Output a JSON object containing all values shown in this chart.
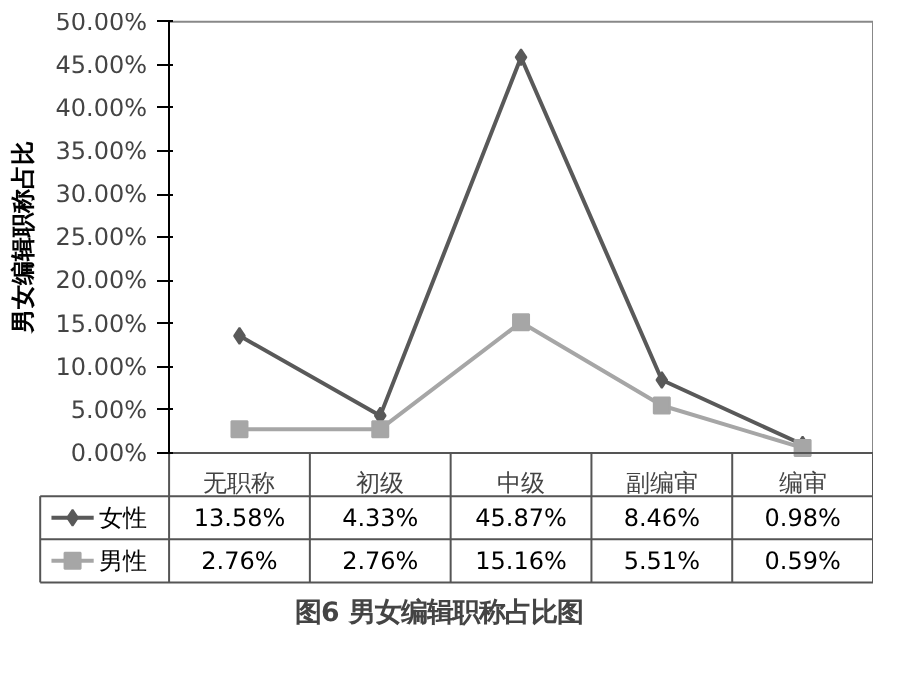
{
  "chart_data": {
    "type": "line",
    "title": "图6 男女编辑职称占比图",
    "ylabel": "男女编辑职称占比",
    "categories": [
      "无职称",
      "初级",
      "中级",
      "副编审",
      "编审"
    ],
    "ylim": [
      0,
      50
    ],
    "yticks": [
      {
        "value": 0,
        "label": "0.00%"
      },
      {
        "value": 5,
        "label": "5.00%"
      },
      {
        "value": 10,
        "label": "10.00%"
      },
      {
        "value": 15,
        "label": "15.00%"
      },
      {
        "value": 20,
        "label": "20.00%"
      },
      {
        "value": 25,
        "label": "25.00%"
      },
      {
        "value": 30,
        "label": "30.00%"
      },
      {
        "value": 35,
        "label": "35.00%"
      },
      {
        "value": 40,
        "label": "40.00%"
      },
      {
        "value": 45,
        "label": "45.00%"
      },
      {
        "value": 50,
        "label": "50.00%"
      }
    ],
    "grid": false,
    "legend": "bottom",
    "series": [
      {
        "name": "女性",
        "color": "#595959",
        "marker": "diamond",
        "values": [
          13.58,
          4.33,
          45.87,
          8.46,
          0.98
        ],
        "value_labels": [
          "13.58%",
          "4.33%",
          "45.87%",
          "8.46%",
          "0.98%"
        ]
      },
      {
        "name": "男性",
        "color": "#a6a6a6",
        "marker": "square",
        "values": [
          2.76,
          2.76,
          15.16,
          5.51,
          0.59
        ],
        "value_labels": [
          "2.76%",
          "2.76%",
          "15.16%",
          "5.51%",
          "0.59%"
        ]
      }
    ]
  }
}
